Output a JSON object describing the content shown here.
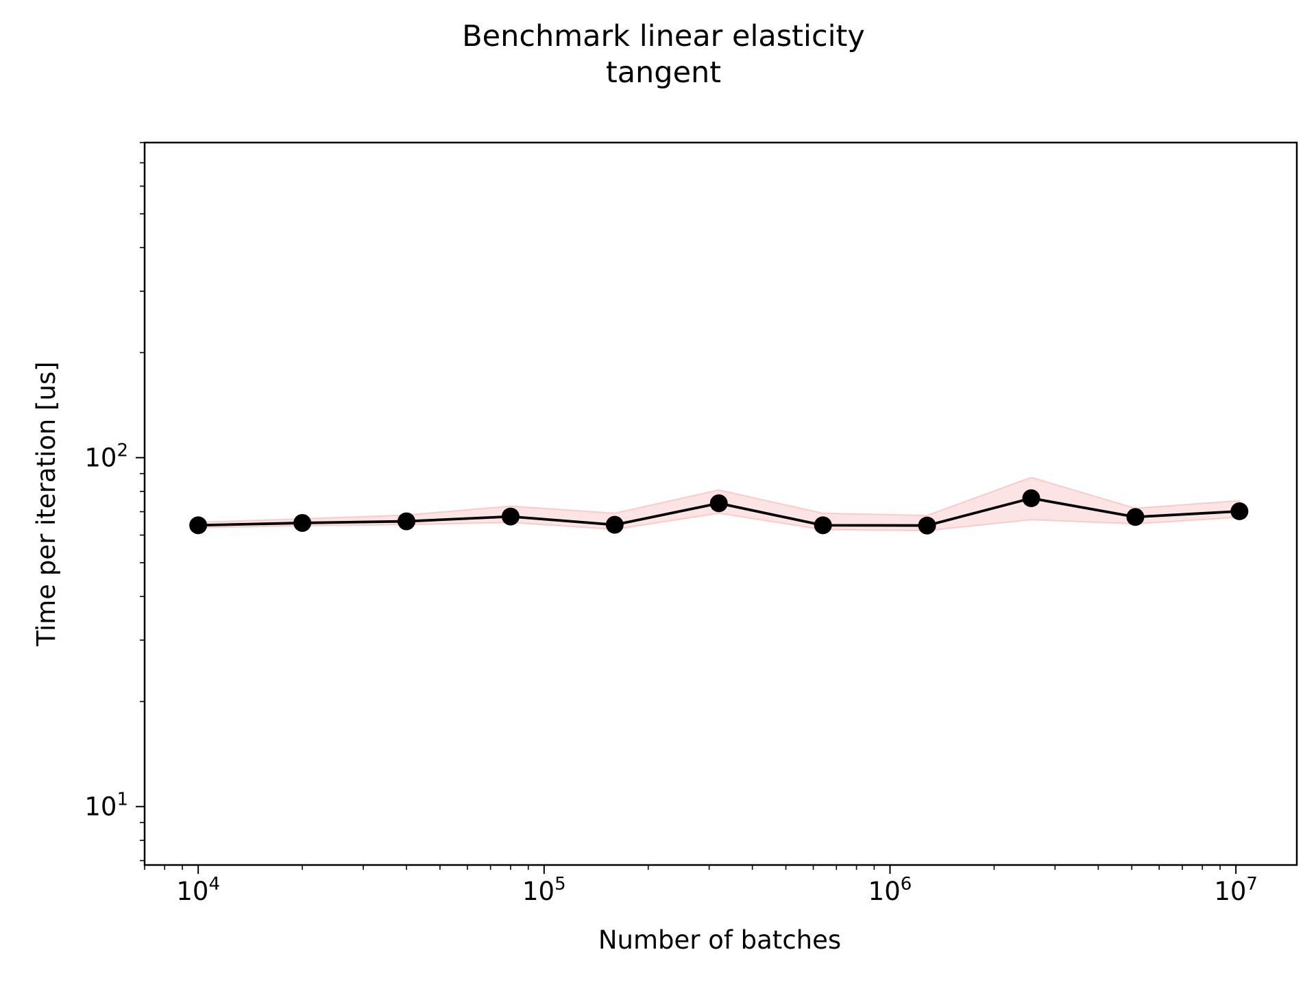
{
  "chart_data": {
    "type": "line",
    "title": "Benchmark linear elasticity",
    "subtitle": "tangent",
    "xlabel": "Number of batches",
    "ylabel": "Time per iteration [us]",
    "xscale": "log",
    "yscale": "log",
    "xlim": [
      7000,
      15000000
    ],
    "ylim": [
      6.8,
      800
    ],
    "x_ticks": [
      {
        "base": "10",
        "exp": "4",
        "value": 10000
      },
      {
        "base": "10",
        "exp": "5",
        "value": 100000
      },
      {
        "base": "10",
        "exp": "6",
        "value": 1000000
      },
      {
        "base": "10",
        "exp": "7",
        "value": 10000000
      }
    ],
    "y_ticks": [
      {
        "base": "10",
        "exp": "1",
        "value": 10
      },
      {
        "base": "10",
        "exp": "2",
        "value": 100
      }
    ],
    "grid": false,
    "legend": "none",
    "series": [
      {
        "x": [
          10000,
          20000,
          40000,
          80000,
          160000,
          320000,
          640000,
          1280000,
          2560000,
          5120000,
          10240000
        ],
        "values": [
          64,
          65,
          65.7,
          67.8,
          64.2,
          74,
          64,
          63.9,
          76.5,
          67.6,
          70.2
        ],
        "upper": [
          65.3,
          66.8,
          68.5,
          72.6,
          69.3,
          80.8,
          69.3,
          68.3,
          87.8,
          71.6,
          75.3
        ],
        "lower": [
          63,
          63.8,
          64.3,
          65.2,
          62.3,
          69.3,
          62.2,
          61.8,
          66.4,
          64.6,
          67.5
        ],
        "line_color": "#000000",
        "marker_color": "#000000",
        "band_color": "#f8a5a5"
      }
    ]
  }
}
